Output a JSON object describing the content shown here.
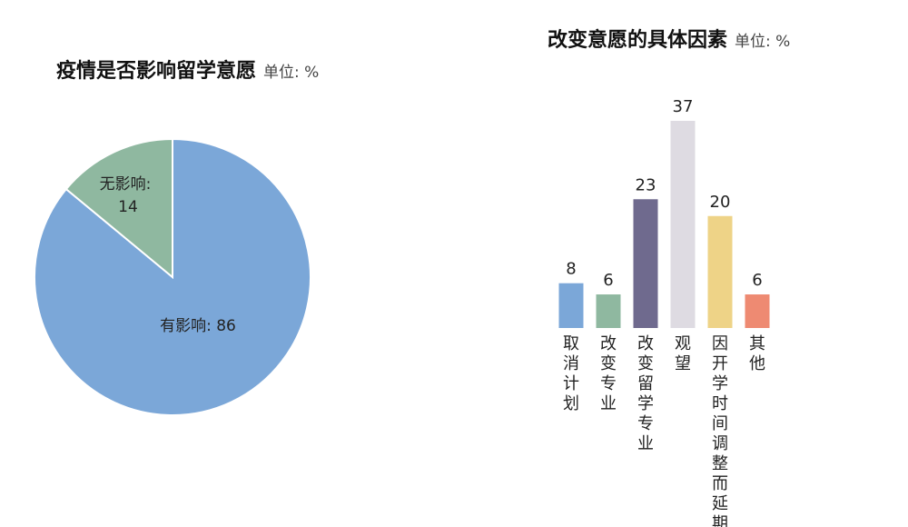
{
  "chart_data": [
    {
      "type": "pie",
      "title": "疫情是否影响留学意愿",
      "unit": "单位: %",
      "slices": [
        {
          "label": "有影响",
          "value": 86,
          "color": "#7ba7d8"
        },
        {
          "label": "无影响",
          "value": 14,
          "color": "#8fb8a0"
        }
      ]
    },
    {
      "type": "bar",
      "title": "改变意愿的具体因素",
      "unit": "单位: %",
      "categories": [
        "取消计划",
        "改变专业",
        "改变留学专业",
        "观望",
        "因开学时间调整而延期",
        "其他"
      ],
      "values": [
        8,
        6,
        23,
        37,
        20,
        6
      ],
      "colors": [
        "#7ba7d8",
        "#8fb8a0",
        "#6f6a8e",
        "#dedbe2",
        "#eed387",
        "#ee8a72"
      ],
      "ylim": [
        0,
        37
      ]
    }
  ]
}
